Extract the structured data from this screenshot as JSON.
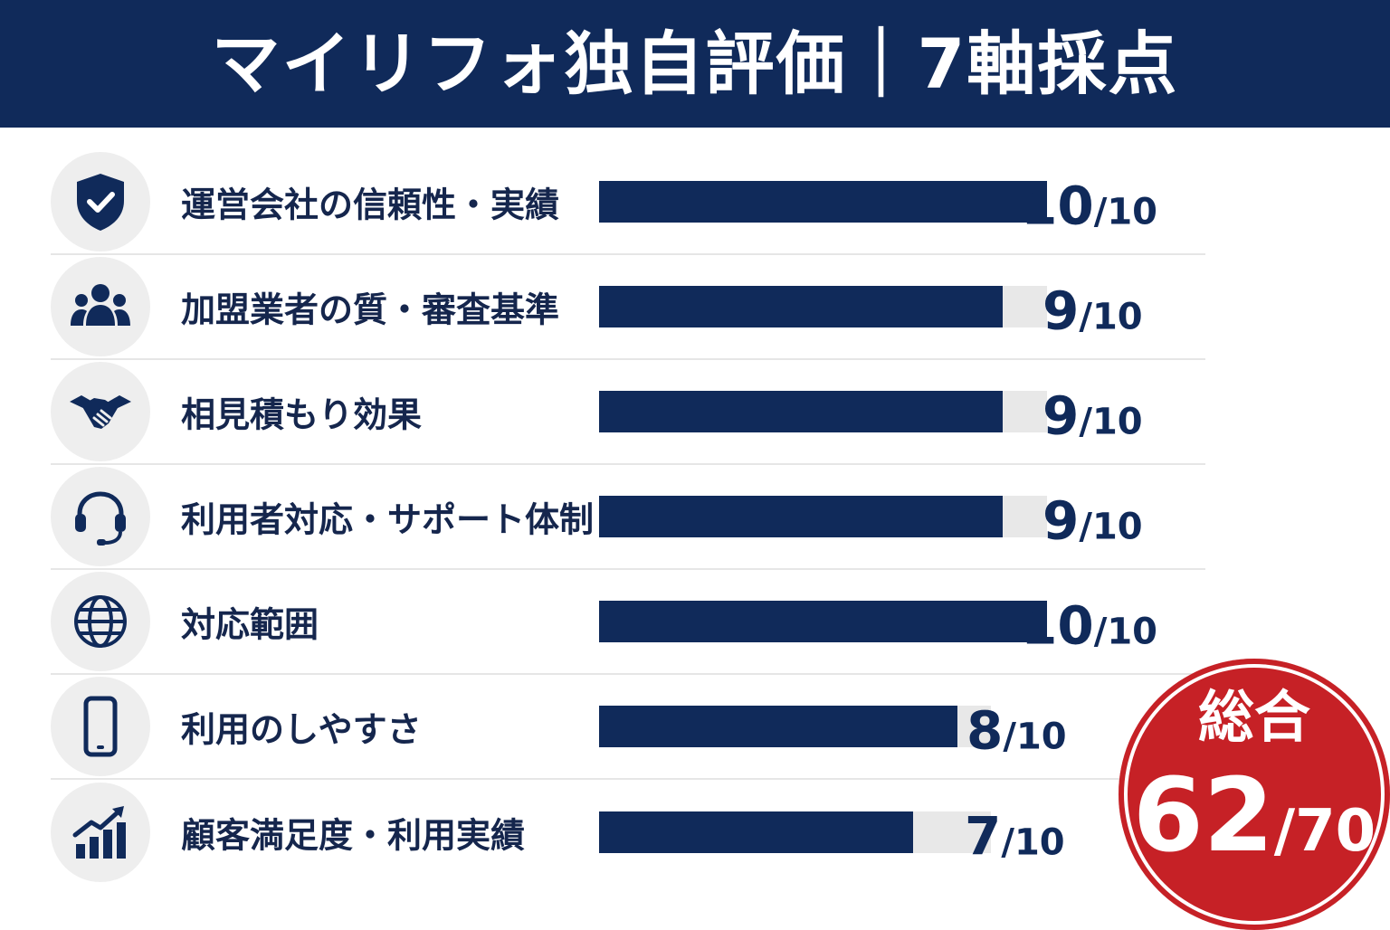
{
  "header": {
    "title": "マイリフォ独自評価｜7軸採点"
  },
  "colors": {
    "navy": "#102a5a",
    "track": "#e8e8e8",
    "red": "#c62126",
    "icon_bg": "#eeeeee"
  },
  "chart_data": {
    "type": "bar",
    "orientation": "horizontal",
    "title": "マイリフォ独自評価｜7軸採点",
    "max": 10,
    "categories": [
      "運営会社の信頼性・実績",
      "加盟業者の質・審査基準",
      "相見積もり効果",
      "利用者対応・サポート体制",
      "対応範囲",
      "利用のしやすさ",
      "顧客満足度・利用実績"
    ],
    "values": [
      10,
      9,
      9,
      9,
      10,
      8,
      7
    ],
    "score_labels": [
      "10",
      "9",
      "9",
      "9",
      "10",
      "8",
      "7"
    ],
    "denominator_label": "/10",
    "icons": [
      "shield-check-icon",
      "group-icon",
      "handshake-icon",
      "headset-icon",
      "globe-icon",
      "smartphone-icon",
      "growth-chart-icon"
    ]
  },
  "total": {
    "label": "総合",
    "value": "62",
    "denominator": "/70"
  }
}
